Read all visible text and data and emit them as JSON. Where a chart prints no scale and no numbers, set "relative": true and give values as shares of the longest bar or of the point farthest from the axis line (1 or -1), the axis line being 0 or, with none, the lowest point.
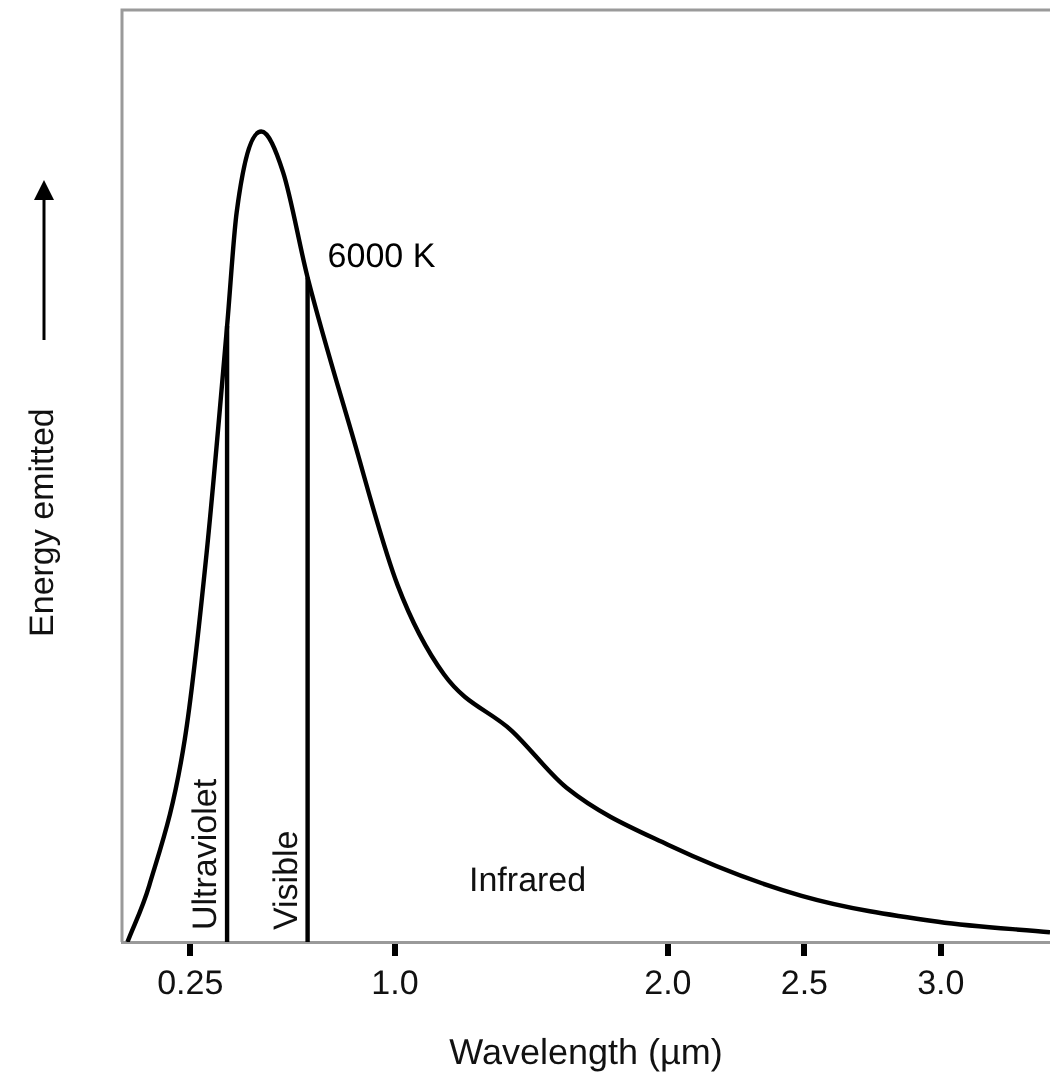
{
  "chart_data": {
    "type": "line",
    "relative": true,
    "xlabel": "Wavelength (µm)",
    "ylabel": "Energy emitted",
    "xlim": [
      0,
      3.4
    ],
    "xticks": [
      0.25,
      {
        "value": 1,
        "label": "1.0"
      },
      {
        "value": 2,
        "label": "2.0"
      },
      2.5,
      {
        "value": 3,
        "label": "3.0"
      }
    ],
    "series": [
      {
        "name": "6000 K",
        "color": "#000000",
        "x": [
          0.02,
          0.1,
          0.23,
          0.31,
          0.385,
          0.42,
          0.51,
          0.59,
          0.68,
          0.84,
          1.01,
          1.18,
          1.43,
          1.63,
          2.0,
          2.49,
          2.99,
          3.4
        ],
        "values": [
          0,
          0.07,
          0.25,
          0.48,
          0.76,
          0.9,
          1,
          0.95,
          0.82,
          0.63,
          0.44,
          0.33,
          0.26,
          0.19,
          0.12,
          0.057,
          0.025,
          0.012
        ]
      },
      {
        "color": "#000000",
        "x": [
          0.385,
          0.385
        ],
        "values": [
          0,
          0.76
        ]
      },
      {
        "color": "#000000",
        "x": [
          0.68,
          0.68
        ],
        "values": [
          0,
          0.82
        ]
      }
    ],
    "annotations": [
      "Ultraviolet",
      "Visible",
      "Infrared"
    ],
    "grid": false,
    "legend": false,
    "marker": "none",
    "line_style": "solid"
  }
}
